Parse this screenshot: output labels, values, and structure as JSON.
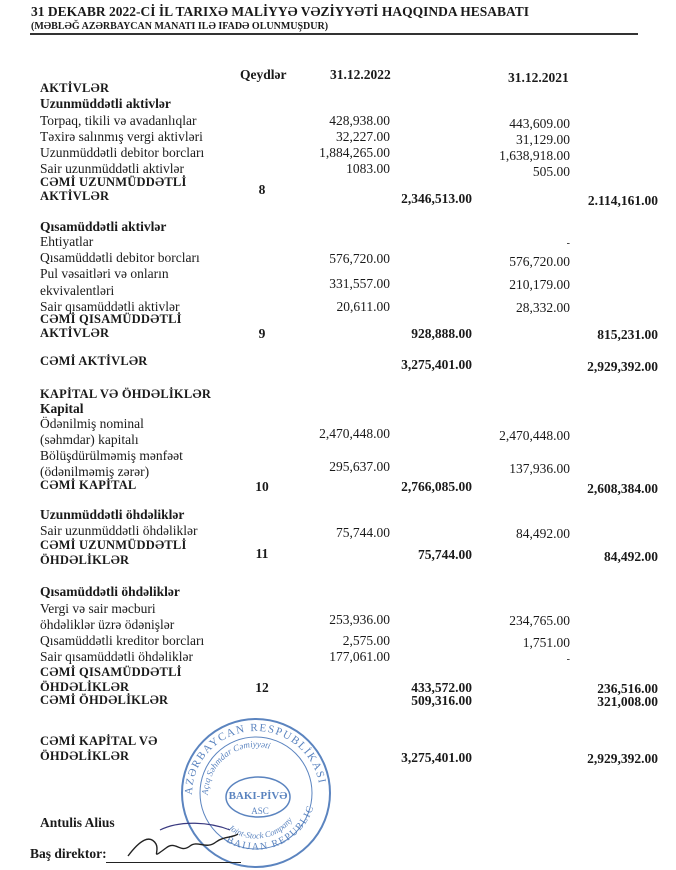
{
  "header": {
    "title": "31 DEKABR 2022-Cİ İL TARIXƏ MALİYYƏ VƏZİYYƏTİ HAQQINDA HESABATI",
    "subtitle": "(MƏBLƏĞ AZƏRBAYCAN MANATI ILƏ  IFADƏ OLUNMUŞDUR)"
  },
  "columns": {
    "notes": "Qeydlər",
    "y2022": "31.12.2022",
    "y2021": "31.12.2021"
  },
  "assets": {
    "heading": "AKTİVLƏR",
    "noncurrent": {
      "heading": "Uzunmüddətli aktivlər",
      "items": [
        {
          "label": "Torpaq, tikili və avadanlıqlar",
          "v2022": "428,938.00",
          "v2021": "443,609.00"
        },
        {
          "label": "Təxirə salınmış vergi aktivləri",
          "v2022": "32,227.00",
          "v2021": "31,129.00"
        },
        {
          "label": "Uzunmüddətli debitor borcları",
          "v2022": "1,884,265.00",
          "v2021": "1,638,918.00"
        },
        {
          "label": "Sair uzunmüddətli aktivlər",
          "v2022": "1083.00",
          "v2021": "505.00"
        }
      ],
      "total_label_1": "CƏMİ UZUNMÜDDƏTLİ",
      "total_label_2": "AKTİVLƏR",
      "note": "8",
      "total2022": "2,346,513.00",
      "total2021": "2.114,161.00"
    },
    "current": {
      "heading": "Qısamüddətli aktivlər",
      "ehtiyatlar": {
        "label": "Ehtiyatlar",
        "v2021": "-"
      },
      "debitor": {
        "label": "Qısamüddətli debitor borcları",
        "v2022": "576,720.00",
        "v2021": "576,720.00"
      },
      "cash": {
        "label_1": "Pul vəsaitləri və onların",
        "label_2": "ekvivalentləri",
        "v2022": "331,557.00",
        "v2021": "210,179.00"
      },
      "other": {
        "label": "Sair qısamüddətli aktivlər",
        "v2022": "20,611.00",
        "v2021": "28,332.00"
      },
      "total_label_1": "CƏMİ QISAMÜDDƏTLİ",
      "total_label_2": "AKTİVLƏR",
      "note": "9",
      "total2022": "928,888.00",
      "total2021": "815,231.00"
    },
    "total": {
      "label": "CƏMİ AKTİVLƏR",
      "v2022": "3,275,401.00",
      "v2021": "2,929,392.00"
    }
  },
  "equity_liabilities": {
    "heading": "KAPİTAL VƏ ÖHDƏLİKLƏR",
    "capital": {
      "heading": "Kapital",
      "nominal": {
        "label_1": "Ödənilmiş nominal",
        "label_2": "(səhmdar) kapitalı",
        "v2022": "2,470,448.00",
        "v2021": "2,470,448.00"
      },
      "retained": {
        "label_1": "Bölüşdürülməmiş mənfəət",
        "label_2": "(ödənilməmiş zərər)",
        "v2022": "295,637.00",
        "v2021": "137,936.00"
      },
      "total_label": "CƏMİ KAPİTAL",
      "note": "10",
      "total2022": "2,766,085.00",
      "total2021": "2,608,384.00"
    },
    "noncurrent": {
      "heading": "Uzunmüddətli öhdəliklər",
      "other": {
        "label": "Sair uzunmüddətli öhdəliklər",
        "v2022": "75,744.00",
        "v2021": "84,492.00"
      },
      "total_label_1": "CƏMİ UZUNMÜDDƏTLİ",
      "total_label_2": "ÖHDƏLİKLƏR",
      "note": "11",
      "total2022": "75,744.00",
      "total2021": "84,492.00"
    },
    "current": {
      "heading": "Qısamüddətli öhdəliklər",
      "tax": {
        "label_1": "Vergi və sair məcburi",
        "label_2": "öhdəliklər üzrə ödənişlər",
        "v2022": "253,936.00",
        "v2021": "234,765.00"
      },
      "creditor": {
        "label": "Qısamüddətli kreditor borcları",
        "v2022": "2,575.00",
        "v2021": "1,751.00"
      },
      "other": {
        "label": "Sair qısamüddətli öhdəliklər",
        "v2022": "177,061.00",
        "v2021": "-"
      },
      "total_label_1": "CƏMİ QISAMÜDDƏTLİ",
      "total_label_2": "ÖHDƏLİKLƏR",
      "note": "12",
      "total2022": "433,572.00",
      "total2021": "236,516.00"
    },
    "total_liabilities": {
      "label": "CƏMİ ÖHDƏLİKLƏR",
      "v2022": "509,316.00",
      "v2021": "321,008.00"
    },
    "total": {
      "label_1": "CƏMİ KAPİTAL VƏ",
      "label_2": "ÖHDƏLİKLƏR",
      "v2022": "3,275,401.00",
      "v2021": "2,929,392.00"
    }
  },
  "signature": {
    "name": "Antulis Alius",
    "position": "Baş direktor:"
  },
  "stamp": {
    "outer_text": "AZƏRBAYCAN RESPUBLİKASI",
    "inner_top": "Açıq Səhmdar Cəmiyyəti",
    "center": "BAKI-PİVƏ",
    "center_sub": "ASC",
    "inner_bottom": "Joint-Stock Company",
    "outer_bottom": "BAIJAN REPUBLIC",
    "color": "#3f6fb5"
  }
}
